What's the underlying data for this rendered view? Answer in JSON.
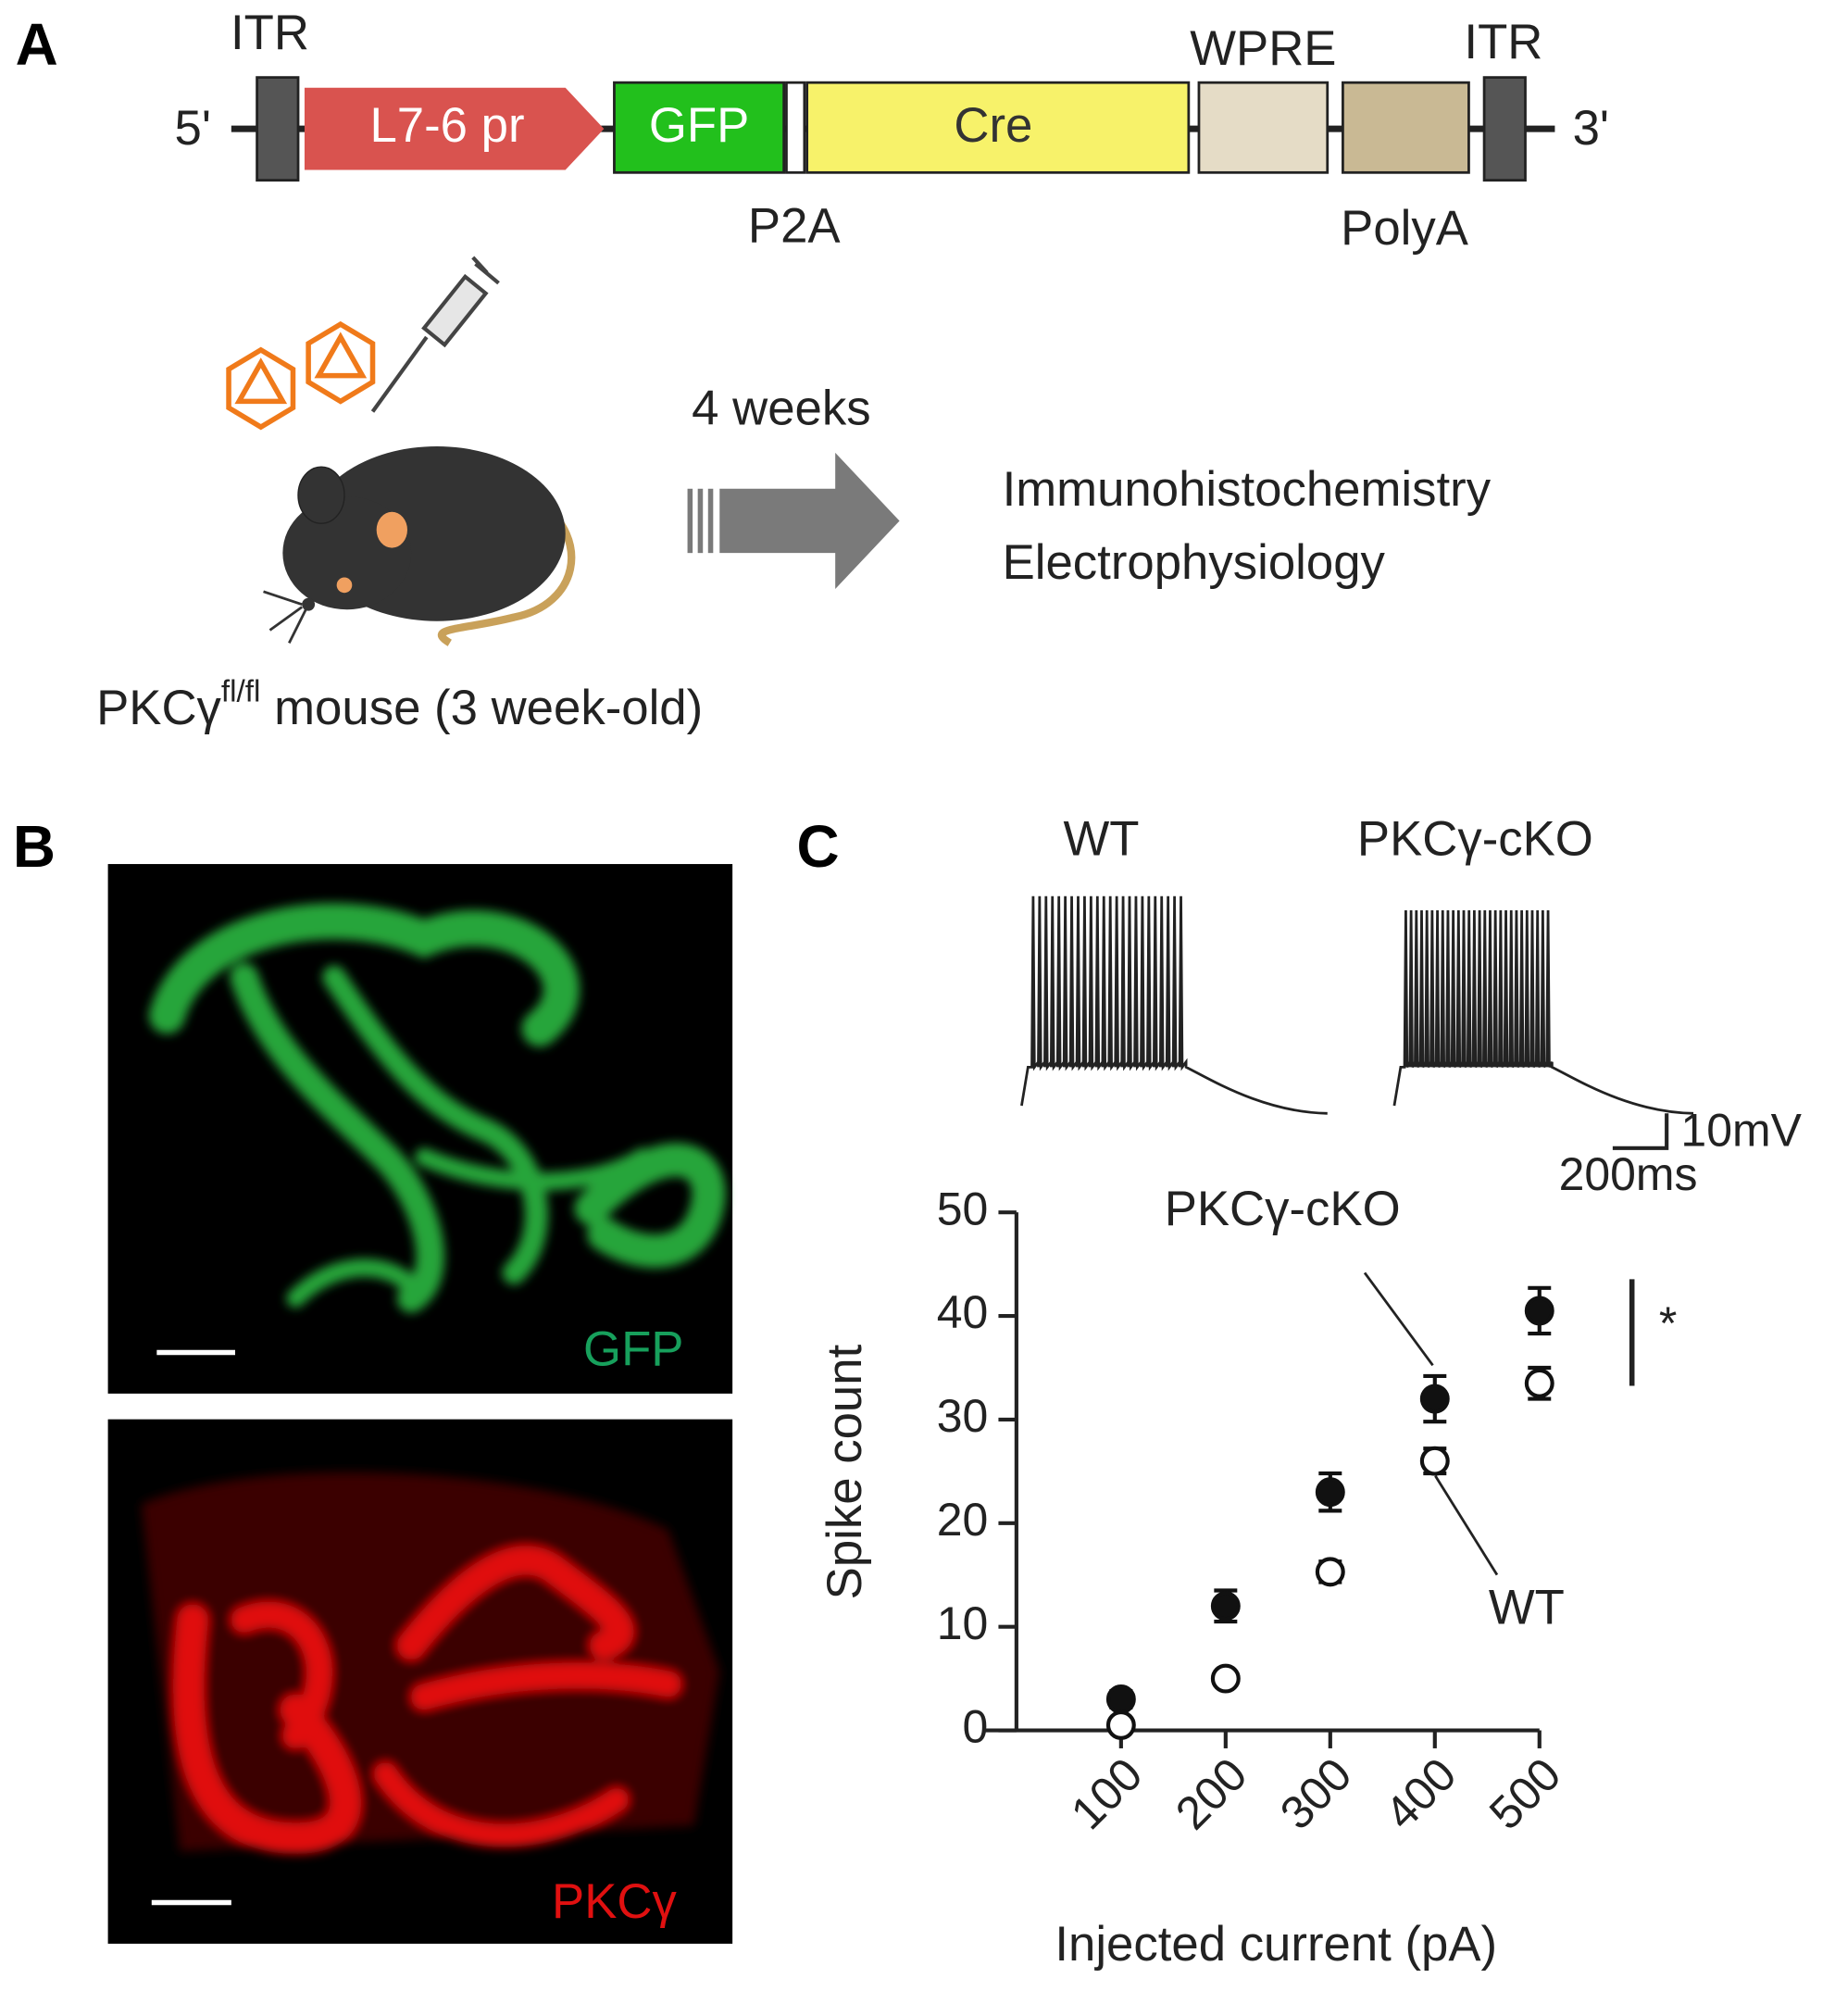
{
  "panel_a": {
    "label": "A",
    "construct": {
      "end_5": "5'",
      "end_3": "3'",
      "boxes": [
        "L7-6 pr",
        "GFP",
        "Cre"
      ],
      "above": [
        "ITR",
        "WPRE",
        "ITR"
      ],
      "below": [
        "P2A",
        "PolyA"
      ]
    },
    "timeline": "4 weeks",
    "readouts": [
      "Immunohistochemistry",
      "Electrophysiology"
    ],
    "mouse_caption": {
      "prefix": "PKCγ",
      "superscript": "fl/fl",
      "suffix": " mouse (3 week-old)"
    }
  },
  "panel_b": {
    "label": "B",
    "images": [
      {
        "label": "GFP"
      },
      {
        "label": "PKCγ"
      }
    ]
  },
  "panel_c": {
    "label": "C",
    "traces": [
      "WT",
      "PKCγ-cKO"
    ],
    "scale_bar": {
      "voltage": "10mV",
      "time": "200ms"
    }
  },
  "chart_data": {
    "type": "scatter",
    "x_label": "Injected current (pA)",
    "y_label": "Spike count",
    "x": [
      100,
      200,
      300,
      400,
      500
    ],
    "xlim": [
      0,
      500
    ],
    "xticks": [
      100,
      200,
      300,
      400,
      500
    ],
    "ylim": [
      0,
      50
    ],
    "yticks": [
      0,
      10,
      20,
      30,
      40,
      50
    ],
    "series": [
      {
        "name": "PKCγ-cKO",
        "color": "#111111",
        "fill": "#111111",
        "values": [
          3,
          12,
          23,
          32,
          40.5
        ],
        "errors": [
          0.8,
          1.5,
          1.8,
          2.2,
          2.2
        ]
      },
      {
        "name": "WT",
        "color": "#111111",
        "fill": "#ffffff",
        "values": [
          0.5,
          5,
          15.3,
          26,
          33.5
        ],
        "errors": [
          0.5,
          0.6,
          1.0,
          1.2,
          1.5
        ]
      }
    ],
    "significance": "*"
  }
}
